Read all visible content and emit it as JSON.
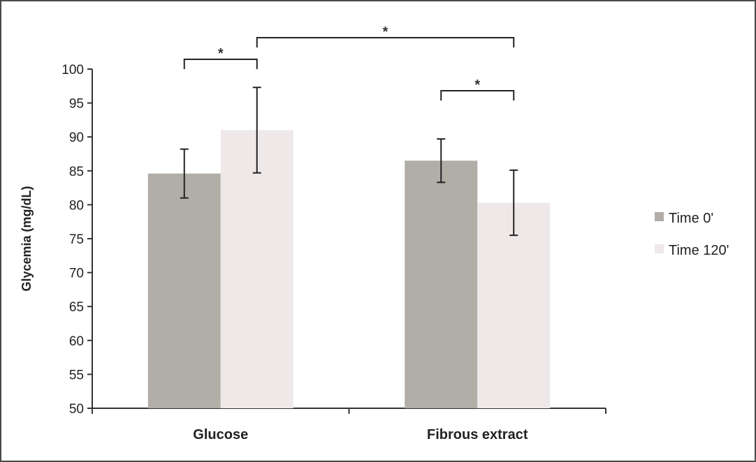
{
  "chart_data": {
    "type": "bar",
    "title": "",
    "xlabel": "",
    "ylabel": "Glycemia (mg/dL)",
    "ylim": [
      50,
      100
    ],
    "yticks": [
      50,
      55,
      60,
      65,
      70,
      75,
      80,
      85,
      90,
      95,
      100
    ],
    "categories": [
      "Glucose",
      "Fibrous extract"
    ],
    "series": [
      {
        "name": "Time 0'",
        "color": "#b1ada7",
        "values": [
          84.6,
          86.5
        ],
        "errors": [
          3.6,
          3.2
        ]
      },
      {
        "name": "Time 120'",
        "color": "#efe8e8",
        "values": [
          91.0,
          80.3
        ],
        "errors": [
          6.3,
          4.8
        ]
      }
    ],
    "significance": [
      {
        "label": "*",
        "from": [
          0,
          0
        ],
        "to": [
          0,
          1
        ]
      },
      {
        "label": "*",
        "from": [
          0,
          1
        ],
        "to": [
          1,
          1
        ]
      },
      {
        "label": "*",
        "from": [
          1,
          0
        ],
        "to": [
          1,
          1
        ]
      }
    ],
    "legend_position": "right",
    "grid": false
  }
}
